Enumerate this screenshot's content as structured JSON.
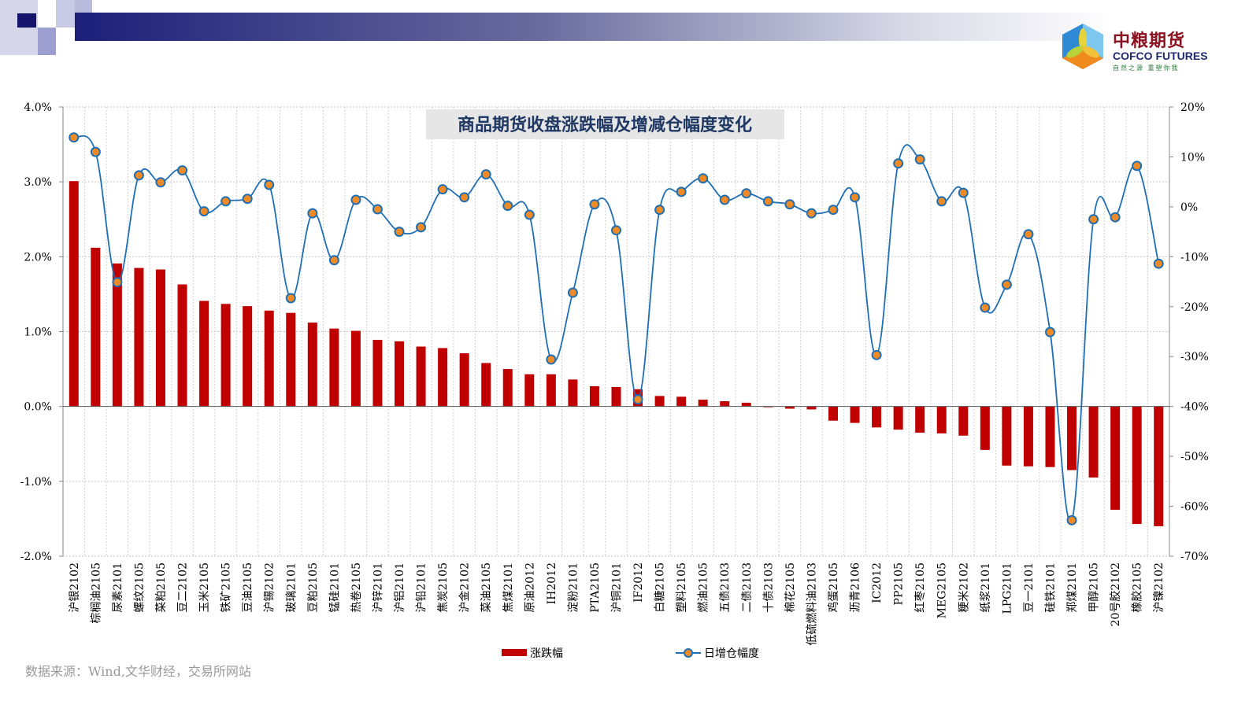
{
  "header": {
    "logo_cn": "中粮期货",
    "logo_en": "COFCO FUTURES",
    "logo_tagline": "自然之源 重塑你我"
  },
  "source": "数据来源：Wind,文华财经，交易所网站",
  "colors": {
    "bar": "#c00000",
    "line": "#1f6fb5",
    "marker": "#f08a24",
    "title_bg": "#e6e6e6",
    "title_text": "#1f3864"
  },
  "chart_data": {
    "type": "bar+line",
    "title": "商品期货收盘涨跌幅及增减仓幅度变化",
    "categories": [
      "沪银2102",
      "棕榈油2105",
      "尿素2101",
      "螺纹2105",
      "菜粕2105",
      "豆二2102",
      "玉米2105",
      "铁矿2105",
      "豆油2105",
      "沪锡2102",
      "玻璃2101",
      "豆粕2105",
      "锰硅2101",
      "热卷2105",
      "沪锌2101",
      "沪铝2101",
      "沪铅2101",
      "焦炭2105",
      "沪金2102",
      "菜油2105",
      "焦煤2101",
      "原油2012",
      "IH2012",
      "淀粉2101",
      "PTA2105",
      "沪铜2101",
      "IF2012",
      "白糖2105",
      "塑料2105",
      "燃油2105",
      "五债2103",
      "二债2103",
      "十债2103",
      "棉花2105",
      "低硫燃料油2103",
      "鸡蛋2105",
      "沥青2106",
      "IC2012",
      "PP2105",
      "红枣2105",
      "MEG2105",
      "粳米2102",
      "纸浆2101",
      "LPG2101",
      "豆一2101",
      "硅铁2101",
      "郑煤2101",
      "甲醇2105",
      "20号胶2102",
      "橡胶2105",
      "沪镍2102"
    ],
    "series": [
      {
        "name": "涨跌幅",
        "type": "bar",
        "axis": "left",
        "values": [
          3.01,
          2.12,
          1.91,
          1.85,
          1.83,
          1.63,
          1.41,
          1.37,
          1.34,
          1.28,
          1.25,
          1.12,
          1.04,
          1.01,
          0.89,
          0.87,
          0.8,
          0.78,
          0.71,
          0.58,
          0.5,
          0.43,
          0.43,
          0.36,
          0.27,
          0.26,
          0.23,
          0.14,
          0.13,
          0.09,
          0.07,
          0.05,
          -0.01,
          -0.03,
          -0.04,
          -0.19,
          -0.22,
          -0.28,
          -0.31,
          -0.35,
          -0.36,
          -0.39,
          -0.58,
          -0.79,
          -0.8,
          -0.81,
          -0.85,
          -0.95,
          -1.38,
          -1.57,
          -1.6
        ]
      },
      {
        "name": "日增仓幅度",
        "type": "line",
        "axis": "right",
        "values": [
          13.9,
          11.0,
          -15.1,
          6.3,
          4.9,
          7.3,
          -0.9,
          1.1,
          1.6,
          4.4,
          -18.3,
          -1.3,
          -10.7,
          1.4,
          -0.5,
          -5.0,
          -4.1,
          3.5,
          1.9,
          6.5,
          0.2,
          -1.6,
          -30.6,
          -17.2,
          0.5,
          -4.7,
          -38.6,
          -0.6,
          3.0,
          5.7,
          1.4,
          2.7,
          1.1,
          0.5,
          -1.3,
          -0.6,
          1.9,
          -29.7,
          8.7,
          9.5,
          1.1,
          2.8,
          -20.2,
          -15.6,
          -5.5,
          -25.1,
          -62.8,
          -2.5,
          -2.1,
          8.2,
          -11.4
        ]
      }
    ],
    "left_axis": {
      "ylim": [
        -2.0,
        4.0
      ],
      "ticks": [
        "-2.0%",
        "-1.0%",
        "0.0%",
        "1.0%",
        "2.0%",
        "3.0%",
        "4.0%"
      ]
    },
    "right_axis": {
      "ylim": [
        -70,
        20
      ],
      "ticks": [
        "-70%",
        "-60%",
        "-50%",
        "-40%",
        "-30%",
        "-20%",
        "-10%",
        "0%",
        "10%",
        "20%"
      ]
    },
    "legend": {
      "position": "bottom",
      "items": [
        "涨跌幅",
        "日增仓幅度"
      ]
    },
    "grid": true
  }
}
